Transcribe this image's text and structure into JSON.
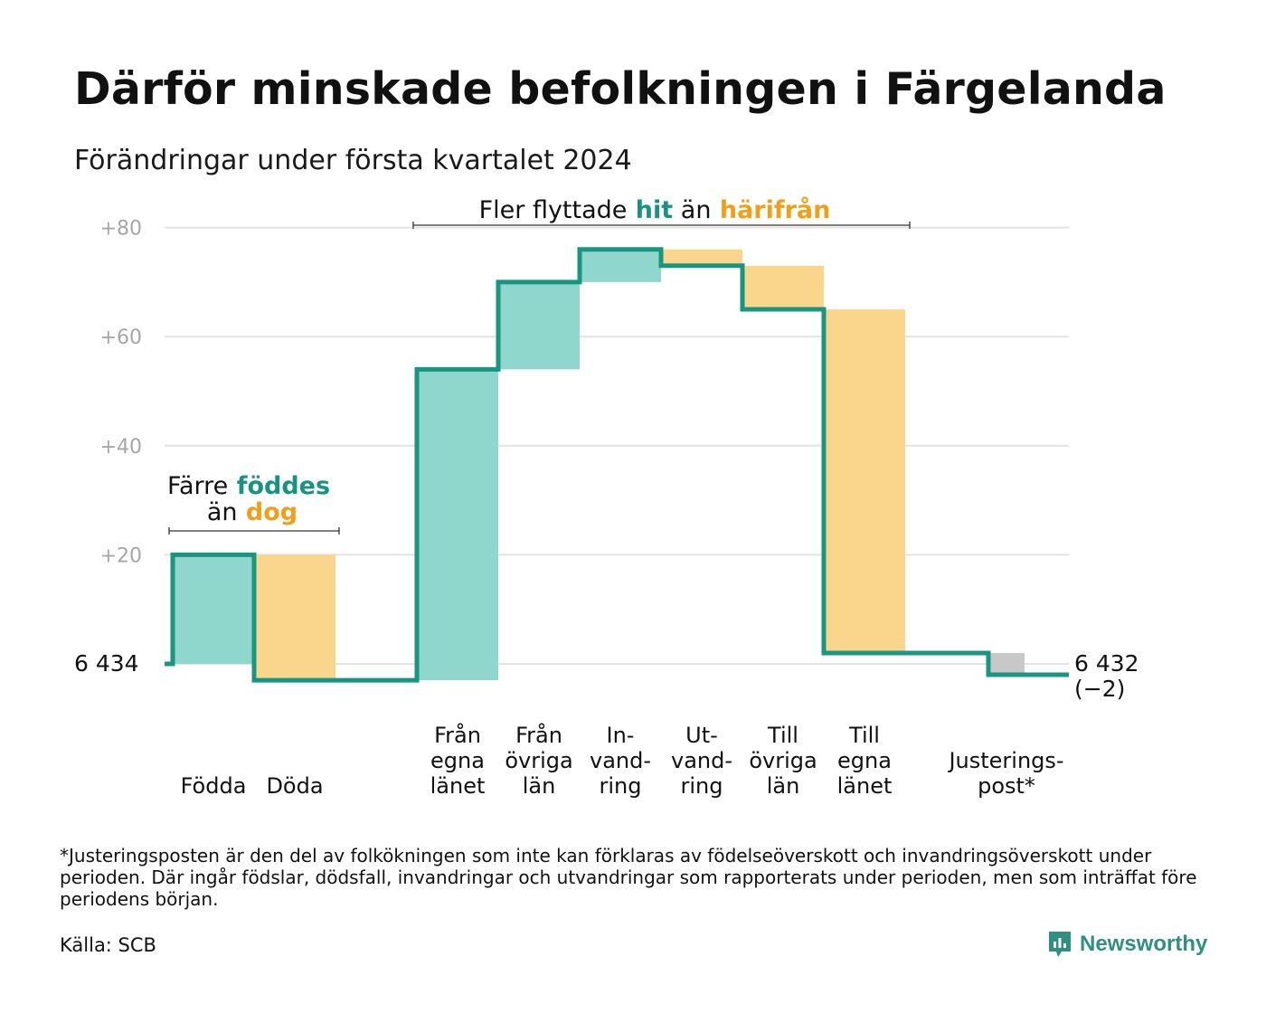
{
  "title": "Därför minskade befolkningen i Färgelanda",
  "subtitle": "Förändringar under första kvartalet 2024",
  "colors": {
    "inflow_fill": "#8fd6cc",
    "outflow_fill": "#fad68d",
    "adjustment_fill": "#c8c8c8",
    "step_line": "#1a9680",
    "accent_teal": "#17937f",
    "accent_orange": "#f0a018",
    "grid": "#e3e3e3",
    "axis_tick": "#a6a6a6"
  },
  "chart_data": {
    "type": "waterfall",
    "start_label": "6  434",
    "end_label": "6 432",
    "end_change": "(−2)",
    "ylim": [
      -5,
      80
    ],
    "yticks": [
      {
        "value": 20,
        "label": "+20"
      },
      {
        "value": 40,
        "label": "+40"
      },
      {
        "value": 60,
        "label": "+60"
      },
      {
        "value": 80,
        "label": "+80"
      }
    ],
    "grid": true,
    "steps": [
      {
        "label_lines": [
          "Födda"
        ],
        "from": 0,
        "to": 20,
        "kind": "in"
      },
      {
        "label_lines": [
          "Döda"
        ],
        "from": 20,
        "to": -3,
        "kind": "out"
      },
      {
        "label_lines": [
          "Från",
          "egna",
          "länet"
        ],
        "from": -3,
        "to": 54,
        "kind": "in"
      },
      {
        "label_lines": [
          "Från",
          "övriga",
          "län"
        ],
        "from": 54,
        "to": 70,
        "kind": "in"
      },
      {
        "label_lines": [
          "In-",
          "vand-",
          "ring"
        ],
        "from": 70,
        "to": 76,
        "kind": "in"
      },
      {
        "label_lines": [
          "Ut-",
          "vand-",
          "ring"
        ],
        "from": 76,
        "to": 73,
        "kind": "out"
      },
      {
        "label_lines": [
          "Till",
          "övriga",
          "län"
        ],
        "from": 73,
        "to": 65,
        "kind": "out"
      },
      {
        "label_lines": [
          "Till",
          "egna",
          "länet"
        ],
        "from": 65,
        "to": 2,
        "kind": "out"
      },
      {
        "label_lines": [
          "Justerings-",
          "post*"
        ],
        "from": 2,
        "to": -2,
        "kind": "adjustment"
      }
    ],
    "annotations": [
      {
        "id": "births",
        "parts": [
          {
            "text": "Färre",
            "style": "plain"
          },
          {
            "text": "föddes",
            "style": "teal"
          },
          {
            "text": "än",
            "style": "plain"
          },
          {
            "text": "dog",
            "style": "orange"
          }
        ]
      },
      {
        "id": "migration",
        "parts": [
          {
            "text": "Fler flyttade",
            "style": "plain"
          },
          {
            "text": "hit",
            "style": "teal"
          },
          {
            "text": "än",
            "style": "plain"
          },
          {
            "text": "härifrån",
            "style": "orange"
          }
        ]
      }
    ]
  },
  "footnote": "*Justeringsposten är den del av folkökningen som inte kan förklaras av födelseöverskott och invandringsöverskott under perioden. Där ingår födslar, dödsfall, invandringar och utvandringar som rapporterats under perioden, men som inträffat före periodens början.",
  "source": "Källa: SCB",
  "brand": {
    "name": "Newsworthy",
    "icon": "newsworthy-logo-icon"
  }
}
